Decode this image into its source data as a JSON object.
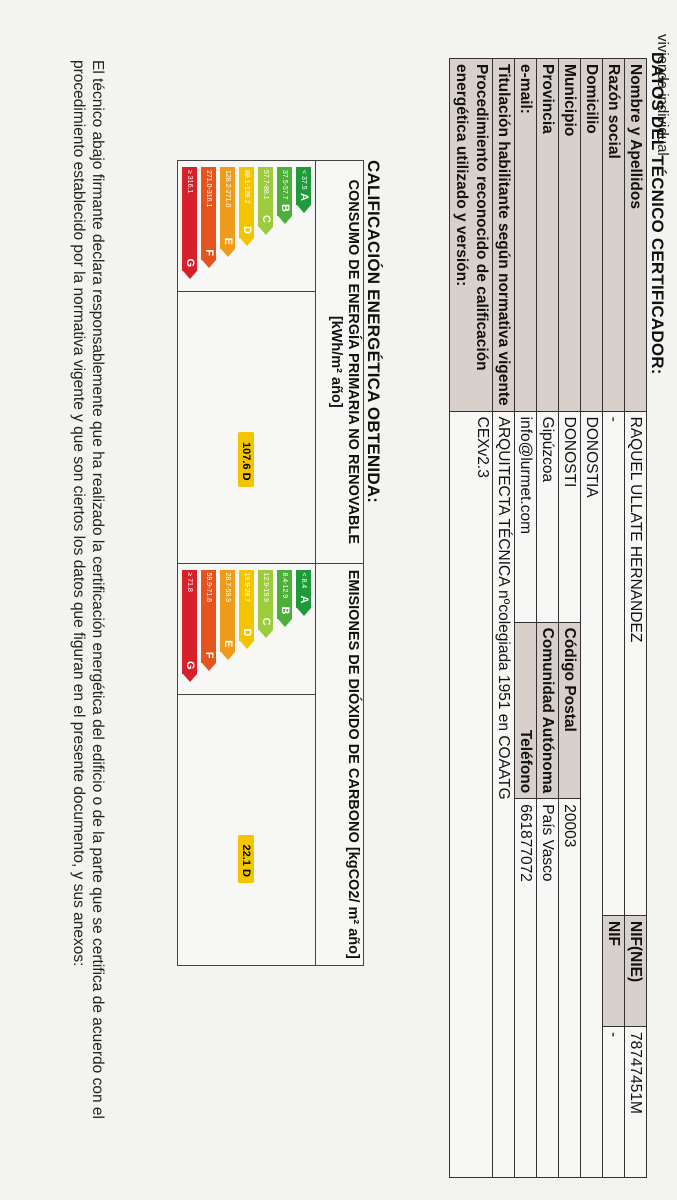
{
  "header_fragment": "vivienda individual",
  "section1_title": "DATOS DEL TÉCNICO CERTIFICADOR:",
  "tech": {
    "name_label": "Nombre y Apellidos",
    "name_value": "RAQUEL ULLATE HERNANDEZ",
    "nif_nie_label": "NIF(NIE)",
    "nif_nie_value": "78747451M",
    "company_label": "Razón social",
    "company_value": "-",
    "nif_label": "NIF",
    "nif_value": "-",
    "address_label": "Domicilio",
    "address_value": "DONOSTIA",
    "municipality_label": "Municipio",
    "municipality_value": "DONOSTI",
    "postal_label": "Código Postal",
    "postal_value": "20003",
    "province_label": "Provincia",
    "province_value": "Gipúzcoa",
    "region_label": "Comunidad Autónoma",
    "region_value": "País Vasco",
    "email_label": "e-mail:",
    "email_value": "info@lurmet.com",
    "phone_label": "Teléfono",
    "phone_value": "661877072",
    "qualification_label": "Titulación habilitante según normativa vigente",
    "qualification_value": "ARQUITECTA TÉCNICA nºcolegiada 1951 en COAATG",
    "procedure_label": "Procedimiento reconocido de calificación energética utilizado y versión:",
    "procedure_value": "CEXv2.3"
  },
  "section2_title": "CALIFICACIÓN ENERGÉTICA OBTENIDA:",
  "ratings": {
    "consumption_header": "CONSUMO DE ENERGÍA PRIMARIA NO RENOVABLE [kWh/m² año]",
    "emissions_header": "EMISIONES DE DIÓXIDO DE CARBONO [kgCO2/ m² año]",
    "consumption_value": "107.6 D",
    "emissions_value": "22.1 D",
    "consumption_level": "D",
    "emissions_level": "D",
    "consumption_scale": [
      {
        "range": "< 37.5",
        "letter": "A",
        "color": "#1f9a3a"
      },
      {
        "range": "37.5-57.7",
        "letter": "B",
        "color": "#4caf3a"
      },
      {
        "range": "57.7-88.1",
        "letter": "C",
        "color": "#9ccb3b"
      },
      {
        "range": "88.1-128.2",
        "letter": "D",
        "color": "#f2c500"
      },
      {
        "range": "128.2-271.0",
        "letter": "E",
        "color": "#ee9b1a"
      },
      {
        "range": "271.0-316.1",
        "letter": "F",
        "color": "#e5541e"
      },
      {
        "range": "≥ 316.1",
        "letter": "G",
        "color": "#d6202a"
      }
    ],
    "emissions_scale": [
      {
        "range": "< 8.4",
        "letter": "A",
        "color": "#1f9a3a"
      },
      {
        "range": "8.4-12.9",
        "letter": "B",
        "color": "#4caf3a"
      },
      {
        "range": "12.9-19.9",
        "letter": "C",
        "color": "#9ccb3b"
      },
      {
        "range": "19.9-28.7",
        "letter": "D",
        "color": "#f2c500"
      },
      {
        "range": "28.7-59.9",
        "letter": "E",
        "color": "#ee9b1a"
      },
      {
        "range": "59.9-71.8",
        "letter": "F",
        "color": "#e5541e"
      },
      {
        "range": "≥ 71.8",
        "letter": "G",
        "color": "#d6202a"
      }
    ]
  },
  "footer_text": "El técnico abajo firmante declara responsablemente que ha realizado la certificación energética del edificio o de la parte que se certifica de acuerdo con el procedimiento establecido por la normativa vigente y que son ciertos los datos que figuran en el presente documento, y sus anexos:"
}
